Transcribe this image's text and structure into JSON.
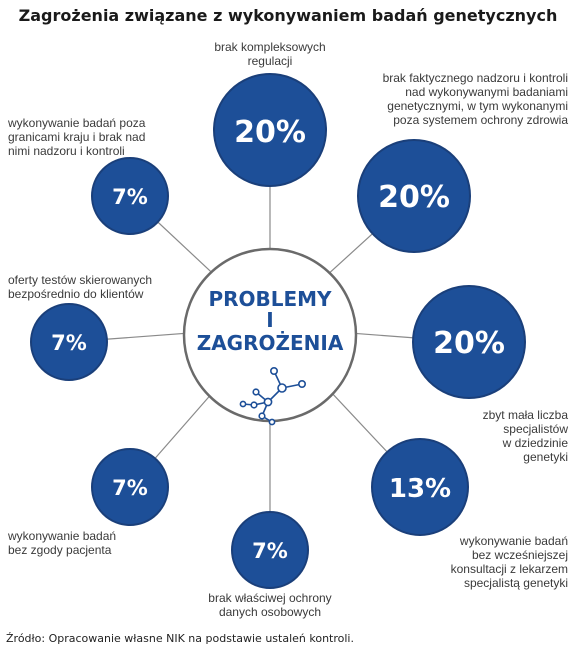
{
  "title": "Zagrożenia związane z wykonywaniem badań genetycznych",
  "center": {
    "line1": "PROBLEMY",
    "line2": "I",
    "line3": "ZAGROŻENIA",
    "icon": "molecule-network-icon"
  },
  "colors": {
    "bubble": "#1d4f98",
    "bubble_stroke": "#1a3f7a",
    "line": "#8a8a8a",
    "center_text": "#1d4f98"
  },
  "items": [
    {
      "value": "20%",
      "label_lines": [
        "brak kompleksowych",
        "regulacji"
      ]
    },
    {
      "value": "20%",
      "label_lines": [
        "brak faktycznego nadzoru i kontroli",
        "nad wykonywanymi badaniami",
        "genetycznymi, w tym wykonanymi",
        "poza systemem ochrony zdrowia"
      ]
    },
    {
      "value": "20%",
      "label_lines": [
        "zbyt mała liczba",
        "specjalistów",
        "w dziedzinie",
        "genetyki"
      ]
    },
    {
      "value": "13%",
      "label_lines": [
        "wykonywanie badań",
        "bez wcześniejszej",
        "konsultacji z lekarzem",
        "specjalistą genetyki"
      ]
    },
    {
      "value": "7%",
      "label_lines": [
        "brak właściwej ochrony",
        "danych osobowych"
      ]
    },
    {
      "value": "7%",
      "label_lines": [
        "wykonywanie badań",
        "bez zgody pacjenta"
      ]
    },
    {
      "value": "7%",
      "label_lines": [
        "oferty testów skierowanych",
        "bezpośrednio do klientów"
      ]
    },
    {
      "value": "7%",
      "label_lines": [
        "wykonywanie badań poza",
        "granicami kraju i brak nad",
        "nimi nadzoru i kontroli"
      ]
    }
  ],
  "source": "Źródło: Opracowanie własne NIK na podstawie ustaleń kontroli."
}
